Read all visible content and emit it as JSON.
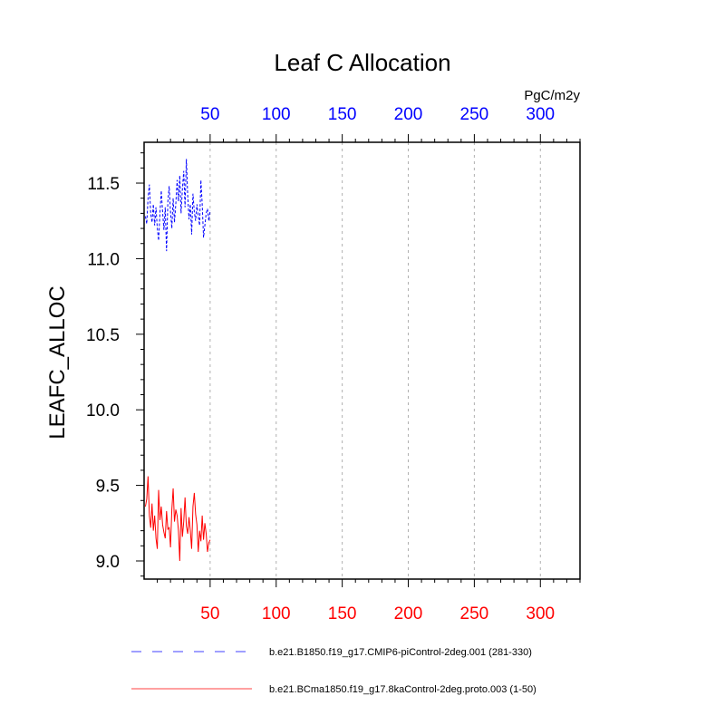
{
  "chart_data": {
    "type": "line",
    "title": "Leaf C Allocation",
    "units_label": "PgC/m2y",
    "ylabel": "LEAFC_ALLOC",
    "xlabel": "",
    "xlim": [
      0,
      330
    ],
    "ylim": [
      8.88,
      11.77
    ],
    "xticks": [
      50,
      100,
      150,
      200,
      250,
      300
    ],
    "yticks": [
      9.0,
      9.5,
      10.0,
      10.5,
      11.0,
      11.5
    ],
    "ytick_labels": [
      "9.0",
      "9.5",
      "10.0",
      "10.5",
      "11.0",
      "11.5"
    ],
    "x_minor_step": 10,
    "y_minor_step": 0.1,
    "grid": "vertical dashed at major x ticks",
    "top_axis_color": "#0000ff",
    "bottom_axis_color": "#ff0000",
    "legend_position": "bottom",
    "series": [
      {
        "name": "b.e21.B1850.f19_g17.CMIP6-piControl-2deg.001 (281-330)",
        "color": "#0000ff",
        "style": "dashed",
        "x": [
          1,
          2,
          3,
          4,
          5,
          6,
          7,
          8,
          9,
          10,
          11,
          12,
          13,
          14,
          15,
          16,
          17,
          18,
          19,
          20,
          21,
          22,
          23,
          24,
          25,
          26,
          27,
          28,
          29,
          30,
          31,
          32,
          33,
          34,
          35,
          36,
          37,
          38,
          39,
          40,
          41,
          42,
          43,
          44,
          45,
          46,
          47,
          48,
          49,
          50
        ],
        "values": [
          11.28,
          11.23,
          11.4,
          11.49,
          11.3,
          11.24,
          11.36,
          11.22,
          11.34,
          11.2,
          11.12,
          11.3,
          11.45,
          11.31,
          11.19,
          11.34,
          11.05,
          11.38,
          11.48,
          11.31,
          11.2,
          11.4,
          11.24,
          11.36,
          11.52,
          11.38,
          11.55,
          11.3,
          11.46,
          11.58,
          11.34,
          11.66,
          11.42,
          11.26,
          11.36,
          11.16,
          11.43,
          11.31,
          11.25,
          11.36,
          11.28,
          11.22,
          11.52,
          11.36,
          11.14,
          11.22,
          11.3,
          11.33,
          11.25,
          11.32
        ]
      },
      {
        "name": "b.e21.BCma1850.f19_g17.8kaControl-2deg.proto.003 (1-50)",
        "color": "#ff0000",
        "style": "solid",
        "x": [
          1,
          2,
          3,
          4,
          5,
          6,
          7,
          8,
          9,
          10,
          11,
          12,
          13,
          14,
          15,
          16,
          17,
          18,
          19,
          20,
          21,
          22,
          23,
          24,
          25,
          26,
          27,
          28,
          29,
          30,
          31,
          32,
          33,
          34,
          35,
          36,
          37,
          38,
          39,
          40,
          41,
          42,
          43,
          44,
          45,
          46,
          47,
          48,
          49,
          50
        ],
        "values": [
          9.36,
          9.41,
          9.56,
          9.3,
          9.22,
          9.38,
          9.2,
          9.3,
          9.15,
          9.08,
          9.47,
          9.27,
          9.36,
          9.24,
          9.19,
          9.15,
          9.33,
          9.21,
          9.22,
          9.09,
          9.34,
          9.48,
          9.26,
          9.34,
          9.3,
          9.2,
          9.0,
          9.35,
          9.16,
          9.26,
          9.42,
          9.23,
          9.18,
          9.29,
          9.2,
          9.08,
          9.36,
          9.45,
          9.31,
          9.24,
          9.06,
          9.2,
          9.13,
          9.3,
          9.14,
          9.25,
          9.18,
          9.06,
          9.12,
          9.14
        ]
      }
    ]
  }
}
